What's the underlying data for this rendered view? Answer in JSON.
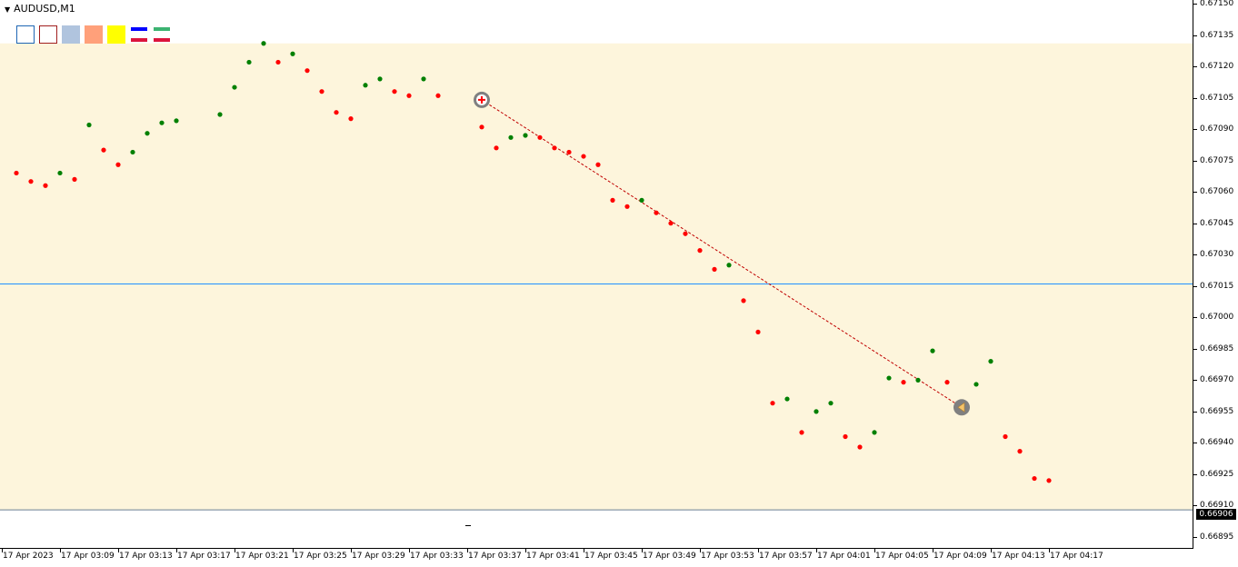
{
  "window": {
    "symbol_label": "AUDUSD,M1"
  },
  "toolbar": {
    "tools": [
      {
        "name": "rectangle-outline-blue-icon",
        "fill": "#ffffff",
        "border": "#1e66b4"
      },
      {
        "name": "rectangle-outline-red-icon",
        "fill": "#ffffff",
        "border": "#a01e1e"
      },
      {
        "name": "rectangle-fill-lightsteelblue-icon",
        "fill": "#b0c4de",
        "border": "#b0c4de"
      },
      {
        "name": "rectangle-fill-lightsalmon-icon",
        "fill": "#ffa07a",
        "border": "#ffa07a"
      },
      {
        "name": "rectangle-fill-yellow-icon",
        "fill": "#ffff00",
        "border": "#ffff00"
      },
      {
        "name": "line-blue-red-icon",
        "top": "#0000ff",
        "bottom": "#dc143c"
      },
      {
        "name": "line-green-red-icon",
        "top": "#3cb371",
        "bottom": "#dc143c"
      }
    ]
  },
  "price_axis": {
    "ticks": [
      "0.67150",
      "0.67135",
      "0.67120",
      "0.67105",
      "0.67090",
      "0.67075",
      "0.67060",
      "0.67045",
      "0.67030",
      "0.67015",
      "0.67000",
      "0.66985",
      "0.66970",
      "0.66955",
      "0.66940",
      "0.66925",
      "0.66910",
      "0.66895"
    ],
    "current_price": "0.66906"
  },
  "time_axis": {
    "ticks": [
      "17 Apr 2023",
      "17 Apr 03:09",
      "17 Apr 03:13",
      "17 Apr 03:17",
      "17 Apr 03:21",
      "17 Apr 03:25",
      "17 Apr 03:29",
      "17 Apr 03:33",
      "17 Apr 03:37",
      "17 Apr 03:41",
      "17 Apr 03:45",
      "17 Apr 03:49",
      "17 Apr 03:53",
      "17 Apr 03:57",
      "17 Apr 04:01",
      "17 Apr 04:05",
      "17 Apr 04:09",
      "17 Apr 04:13",
      "17 Apr 04:17"
    ]
  },
  "colors": {
    "background_zone": "#fdf5dc",
    "up_dot": "#008000",
    "down_dot": "#ff0000",
    "trade_line": "#c00000",
    "level_line": "#1e90ff",
    "marker": "#808080"
  },
  "chart_data": {
    "type": "scatter",
    "title": "",
    "xlabel": "",
    "ylabel": "",
    "ylim": [
      0.66888,
      0.67153
    ],
    "zone": {
      "from": 0.66908,
      "to": 0.67131
    },
    "level_line": 0.67016,
    "trade": {
      "entry_minute": 32,
      "entry_price": 0.67104,
      "exit_minute": 65,
      "exit_price": 0.66957
    },
    "points": [
      {
        "minute": 0,
        "price": 0.67069,
        "dir": "down"
      },
      {
        "minute": 1,
        "price": 0.67065,
        "dir": "down"
      },
      {
        "minute": 2,
        "price": 0.67063,
        "dir": "down"
      },
      {
        "minute": 3,
        "price": 0.67069,
        "dir": "up"
      },
      {
        "minute": 4,
        "price": 0.67066,
        "dir": "down"
      },
      {
        "minute": 5,
        "price": 0.67092,
        "dir": "up"
      },
      {
        "minute": 6,
        "price": 0.6708,
        "dir": "down"
      },
      {
        "minute": 7,
        "price": 0.67073,
        "dir": "down"
      },
      {
        "minute": 8,
        "price": 0.67079,
        "dir": "up"
      },
      {
        "minute": 9,
        "price": 0.67088,
        "dir": "up"
      },
      {
        "minute": 10,
        "price": 0.67093,
        "dir": "up"
      },
      {
        "minute": 11,
        "price": 0.67094,
        "dir": "up"
      },
      {
        "minute": 14,
        "price": 0.67097,
        "dir": "up"
      },
      {
        "minute": 15,
        "price": 0.6711,
        "dir": "up"
      },
      {
        "minute": 16,
        "price": 0.67122,
        "dir": "up"
      },
      {
        "minute": 17,
        "price": 0.67131,
        "dir": "up"
      },
      {
        "minute": 18,
        "price": 0.67122,
        "dir": "down"
      },
      {
        "minute": 19,
        "price": 0.67126,
        "dir": "up"
      },
      {
        "minute": 20,
        "price": 0.67118,
        "dir": "down"
      },
      {
        "minute": 21,
        "price": 0.67108,
        "dir": "down"
      },
      {
        "minute": 22,
        "price": 0.67098,
        "dir": "down"
      },
      {
        "minute": 23,
        "price": 0.67095,
        "dir": "down"
      },
      {
        "minute": 24,
        "price": 0.67111,
        "dir": "up"
      },
      {
        "minute": 25,
        "price": 0.67114,
        "dir": "up"
      },
      {
        "minute": 26,
        "price": 0.67108,
        "dir": "down"
      },
      {
        "minute": 27,
        "price": 0.67106,
        "dir": "down"
      },
      {
        "minute": 28,
        "price": 0.67114,
        "dir": "up"
      },
      {
        "minute": 29,
        "price": 0.67106,
        "dir": "down"
      },
      {
        "minute": 32,
        "price": 0.67091,
        "dir": "down"
      },
      {
        "minute": 33,
        "price": 0.67081,
        "dir": "down"
      },
      {
        "minute": 34,
        "price": 0.67086,
        "dir": "up"
      },
      {
        "minute": 35,
        "price": 0.67087,
        "dir": "up"
      },
      {
        "minute": 36,
        "price": 0.67086,
        "dir": "down"
      },
      {
        "minute": 37,
        "price": 0.67081,
        "dir": "down"
      },
      {
        "minute": 38,
        "price": 0.67079,
        "dir": "down"
      },
      {
        "minute": 39,
        "price": 0.67077,
        "dir": "down"
      },
      {
        "minute": 40,
        "price": 0.67073,
        "dir": "down"
      },
      {
        "minute": 41,
        "price": 0.67056,
        "dir": "down"
      },
      {
        "minute": 42,
        "price": 0.67053,
        "dir": "down"
      },
      {
        "minute": 43,
        "price": 0.67056,
        "dir": "up"
      },
      {
        "minute": 44,
        "price": 0.6705,
        "dir": "down"
      },
      {
        "minute": 45,
        "price": 0.67045,
        "dir": "down"
      },
      {
        "minute": 46,
        "price": 0.6704,
        "dir": "down"
      },
      {
        "minute": 47,
        "price": 0.67032,
        "dir": "down"
      },
      {
        "minute": 48,
        "price": 0.67023,
        "dir": "down"
      },
      {
        "minute": 49,
        "price": 0.67025,
        "dir": "up"
      },
      {
        "minute": 50,
        "price": 0.67008,
        "dir": "down"
      },
      {
        "minute": 51,
        "price": 0.66993,
        "dir": "down"
      },
      {
        "minute": 52,
        "price": 0.66959,
        "dir": "down"
      },
      {
        "minute": 53,
        "price": 0.66961,
        "dir": "up"
      },
      {
        "minute": 54,
        "price": 0.66945,
        "dir": "down"
      },
      {
        "minute": 55,
        "price": 0.66955,
        "dir": "up"
      },
      {
        "minute": 56,
        "price": 0.66959,
        "dir": "up"
      },
      {
        "minute": 57,
        "price": 0.66943,
        "dir": "down"
      },
      {
        "minute": 58,
        "price": 0.66938,
        "dir": "down"
      },
      {
        "minute": 59,
        "price": 0.66945,
        "dir": "up"
      },
      {
        "minute": 60,
        "price": 0.66971,
        "dir": "up"
      },
      {
        "minute": 61,
        "price": 0.66969,
        "dir": "down"
      },
      {
        "minute": 62,
        "price": 0.6697,
        "dir": "up"
      },
      {
        "minute": 63,
        "price": 0.66984,
        "dir": "up"
      },
      {
        "minute": 64,
        "price": 0.66969,
        "dir": "down"
      },
      {
        "minute": 65,
        "price": 0.66956,
        "dir": "down"
      },
      {
        "minute": 66,
        "price": 0.66968,
        "dir": "up"
      },
      {
        "minute": 67,
        "price": 0.66979,
        "dir": "up"
      },
      {
        "minute": 68,
        "price": 0.66943,
        "dir": "down"
      },
      {
        "minute": 69,
        "price": 0.66936,
        "dir": "down"
      },
      {
        "minute": 70,
        "price": 0.66923,
        "dir": "down"
      },
      {
        "minute": 71,
        "price": 0.66922,
        "dir": "down"
      }
    ]
  }
}
